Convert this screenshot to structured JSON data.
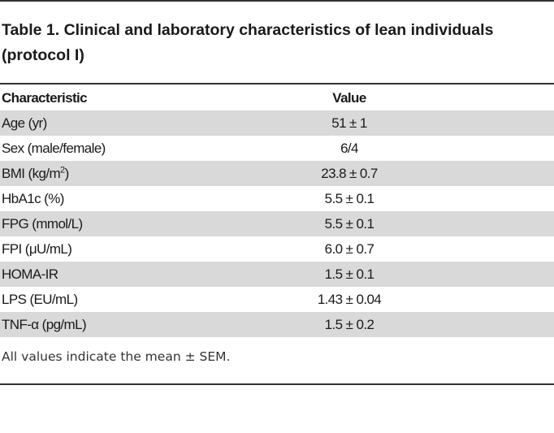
{
  "title": "Table 1. Clinical and laboratory characteristics of lean individuals (protocol I)",
  "table": {
    "headers": {
      "characteristic": "Characteristic",
      "value": "Value"
    },
    "rows": [
      {
        "label": "Age (yr)",
        "value": "51 ± 1"
      },
      {
        "label": "Sex (male/female)",
        "value": "6/4"
      },
      {
        "label_main": "BMI (kg/m",
        "label_sup": "2",
        "label_end": ")",
        "value": "23.8 ± 0.7"
      },
      {
        "label": "HbA1c (%)",
        "value": "5.5 ± 0.1"
      },
      {
        "label": "FPG (mmol/L)",
        "value": "5.5 ± 0.1"
      },
      {
        "label": "FPI (μU/mL)",
        "value": "6.0 ± 0.7"
      },
      {
        "label": "HOMA-IR",
        "value": "1.5 ± 0.1"
      },
      {
        "label": "LPS (EU/mL)",
        "value": "1.43 ± 0.04"
      },
      {
        "label": "TNF-α (pg/mL)",
        "value": "1.5 ± 0.2"
      }
    ]
  },
  "footnote": "All values indicate the mean ± SEM.",
  "colors": {
    "rule": "#333333",
    "shaded_row": "#d9d9d9",
    "text": "#1a1a1a"
  }
}
